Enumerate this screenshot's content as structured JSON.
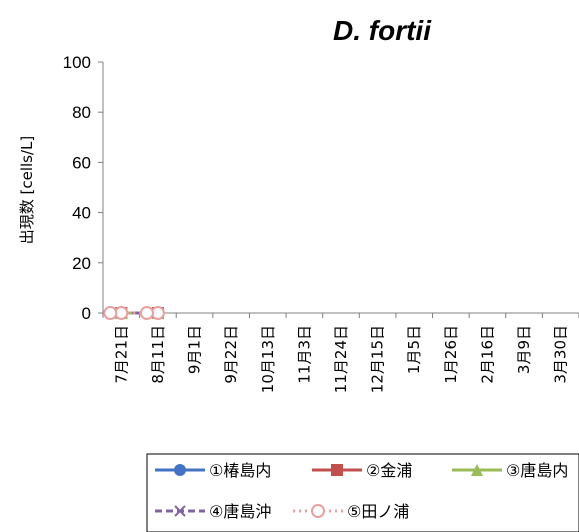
{
  "chart_data": {
    "type": "line",
    "title": "D. fortii",
    "ylabel": "出現数 [cells/L]",
    "xlabel": "",
    "ylim": [
      0,
      100
    ],
    "yticks": [
      "0",
      "20",
      "40",
      "60",
      "80",
      "100"
    ],
    "categories": [
      "7月21日",
      "8月11日",
      "9月1日",
      "9月22日",
      "10月13日",
      "11月3日",
      "11月24日",
      "12月15日",
      "1月5日",
      "1月26日",
      "2月16日",
      "3月9日",
      "3月30日"
    ],
    "series": [
      {
        "name": "①椿島内",
        "color": "#4472c4",
        "marker": "circle",
        "dash": "solid",
        "values": [
          0,
          0,
          null,
          null,
          null,
          null,
          null,
          null,
          null,
          null,
          null,
          null,
          null
        ]
      },
      {
        "name": "②金浦",
        "color": "#c0504d",
        "marker": "square",
        "dash": "solid",
        "values": [
          0,
          0,
          null,
          null,
          null,
          null,
          null,
          null,
          null,
          null,
          null,
          null,
          null
        ]
      },
      {
        "name": "③唐島内",
        "color": "#9bbb59",
        "marker": "triangle",
        "dash": "solid",
        "values": [
          0,
          0,
          null,
          null,
          null,
          null,
          null,
          null,
          null,
          null,
          null,
          null,
          null
        ]
      },
      {
        "name": "④唐島沖",
        "color": "#8064a2",
        "marker": "x",
        "dash": "dashed",
        "values": [
          0,
          0,
          null,
          null,
          null,
          null,
          null,
          null,
          null,
          null,
          null,
          null,
          null
        ]
      },
      {
        "name": "⑤田ノ浦",
        "color": "#e8a0a0",
        "marker": "open-circle",
        "dash": "dotted",
        "values": [
          0,
          0,
          null,
          null,
          null,
          null,
          null,
          null,
          null,
          null,
          null,
          null,
          null
        ]
      }
    ],
    "grid": false,
    "legend_position": "bottom"
  }
}
